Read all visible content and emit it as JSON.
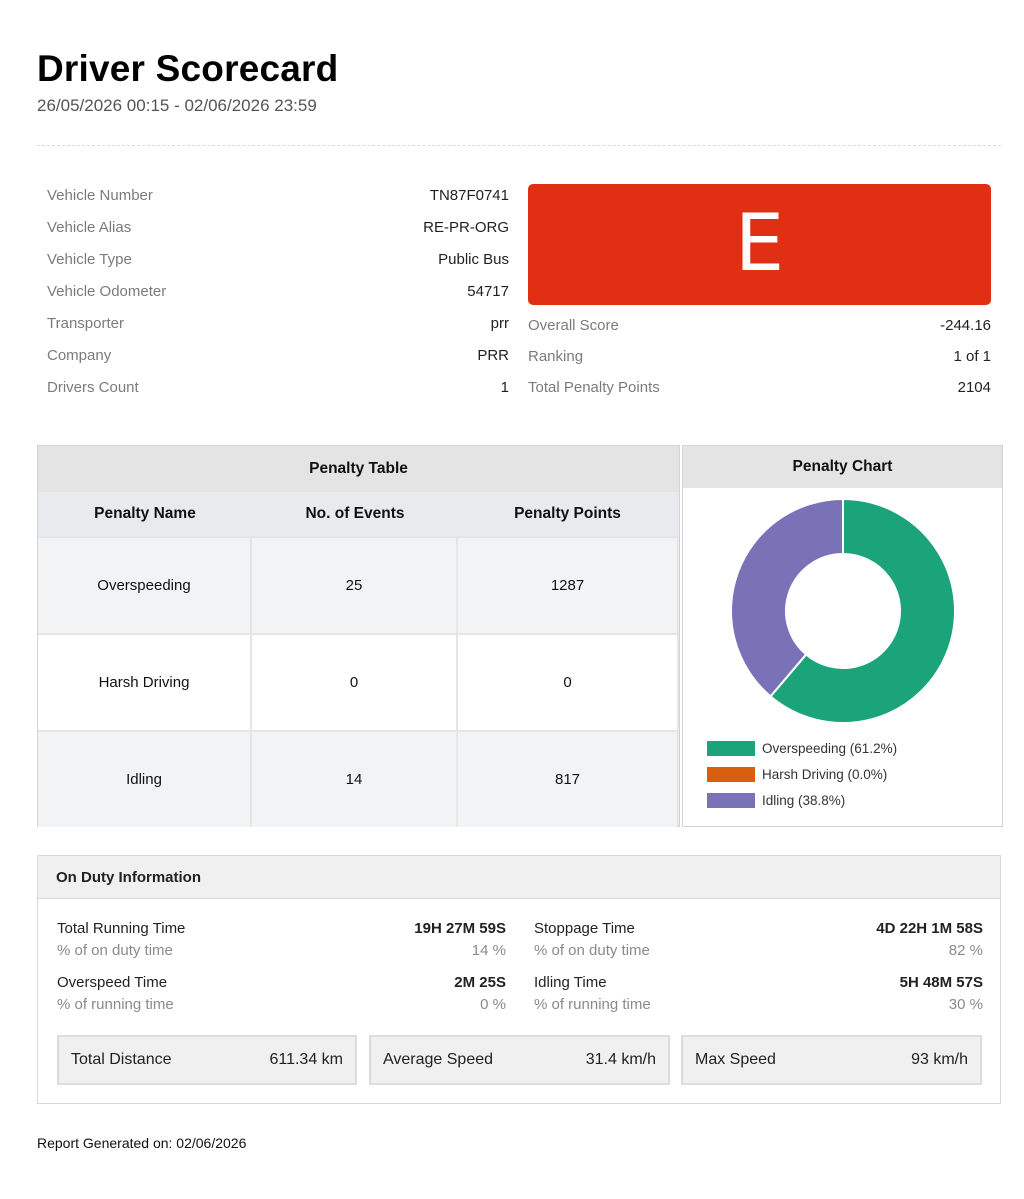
{
  "header": {
    "title": "Driver Scorecard",
    "date_range": "26/05/2026 00:15 - 02/06/2026 23:59"
  },
  "vehicle_info": [
    {
      "label": "Vehicle Number",
      "value": "TN87F0741"
    },
    {
      "label": "Vehicle Alias",
      "value": "RE-PR-ORG"
    },
    {
      "label": "Vehicle Type",
      "value": "Public Bus"
    },
    {
      "label": "Vehicle Odometer",
      "value": "54717"
    },
    {
      "label": "Transporter",
      "value": "prr"
    },
    {
      "label": "Company",
      "value": "PRR"
    },
    {
      "label": "Drivers Count",
      "value": "1"
    }
  ],
  "grade": {
    "letter": "E",
    "color": "#e02f12"
  },
  "scores": [
    {
      "label": "Overall Score",
      "value": "-244.16"
    },
    {
      "label": "Ranking",
      "value": "1 of 1"
    },
    {
      "label": "Total Penalty Points",
      "value": "2104"
    }
  ],
  "penalty_table": {
    "caption": "Penalty Table",
    "columns": [
      "Penalty Name",
      "No. of Events",
      "Penalty Points"
    ],
    "rows": [
      [
        "Overspeeding",
        "25",
        "1287"
      ],
      [
        "Harsh Driving",
        "0",
        "0"
      ],
      [
        "Idling",
        "14",
        "817"
      ]
    ]
  },
  "penalty_chart": {
    "caption": "Penalty Chart"
  },
  "chart_data": {
    "type": "pie",
    "donut": true,
    "title": "Penalty Chart",
    "categories": [
      "Overspeeding",
      "Harsh Driving",
      "Idling"
    ],
    "values": [
      61.2,
      0.0,
      38.8
    ],
    "legend_labels": [
      "Overspeeding (61.2%)",
      "Harsh Driving (0.0%)",
      "Idling (38.8%)"
    ],
    "colors": [
      "#1ba37a",
      "#d95f0e",
      "#7a72b6"
    ],
    "legend_position": "bottom"
  },
  "on_duty": {
    "title": "On Duty Information",
    "left": [
      {
        "name": "Total Running Time",
        "value": "19H 27M 59S",
        "sub_name": "% of on duty time",
        "sub_value": "14 %"
      },
      {
        "name": "Overspeed Time",
        "value": "2M 25S",
        "sub_name": "% of running time",
        "sub_value": "0 %"
      }
    ],
    "right": [
      {
        "name": "Stoppage Time",
        "value": "4D 22H 1M 58S",
        "sub_name": "% of on duty time",
        "sub_value": "82 %"
      },
      {
        "name": "Idling Time",
        "value": "5H 48M 57S",
        "sub_name": "% of running time",
        "sub_value": "30 %"
      }
    ],
    "stats": [
      {
        "label": "Total Distance",
        "value": "611.34 km"
      },
      {
        "label": "Average Speed",
        "value": "31.4 km/h"
      },
      {
        "label": "Max Speed",
        "value": "93 km/h"
      }
    ]
  },
  "footer": {
    "text": "Report Generated on: 02/06/2026"
  }
}
